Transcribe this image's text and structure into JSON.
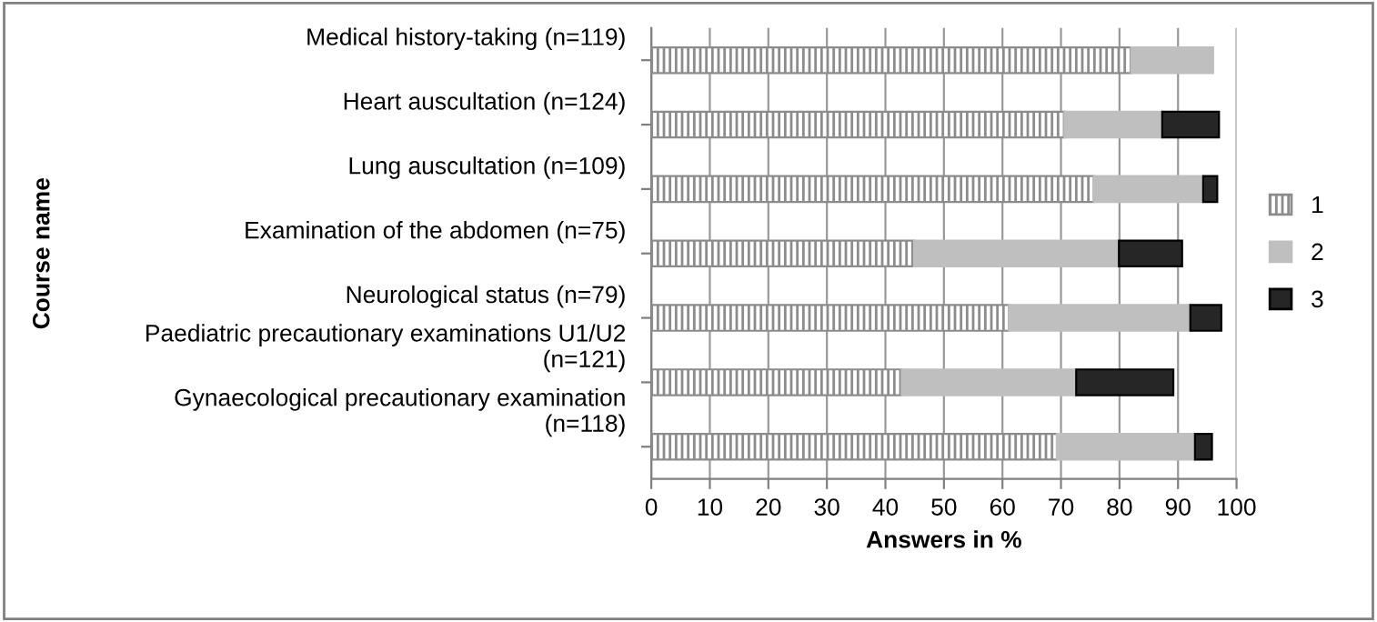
{
  "chart_data": {
    "type": "bar",
    "orientation": "horizontal",
    "stacked": true,
    "xlabel": "Answers in %",
    "ylabel": "Course name",
    "categories": [
      "Medical history-taking (n=119)",
      "Heart auscultation (n=124)",
      "Lung auscultation (n=109)",
      "Examination of the abdomen (n=75)",
      "Neurological status (n=79)",
      "Paediatric precautionary examinations U1/U2\n(n=121)",
      "Gynaecological precautionary examination\n(n=118)"
    ],
    "series": [
      {
        "name": "1",
        "color": "#8c8c8c",
        "values": [
          82.0,
          70.6,
          75.6,
          44.9,
          61.1,
          42.8,
          69.3
        ]
      },
      {
        "name": "2",
        "color": "#bfbfbf",
        "values": [
          14.0,
          16.7,
          18.7,
          35.0,
          31.0,
          29.8,
          23.6
        ]
      },
      {
        "name": "3",
        "color": "#262626",
        "values": [
          null,
          9.7,
          2.4,
          10.8,
          5.3,
          16.6,
          2.9
        ]
      }
    ],
    "xlim": [
      0,
      100
    ],
    "xticks": [
      0,
      10,
      20,
      30,
      40,
      50,
      60,
      70,
      80,
      90,
      100
    ],
    "grid": "x",
    "legend": "right"
  }
}
